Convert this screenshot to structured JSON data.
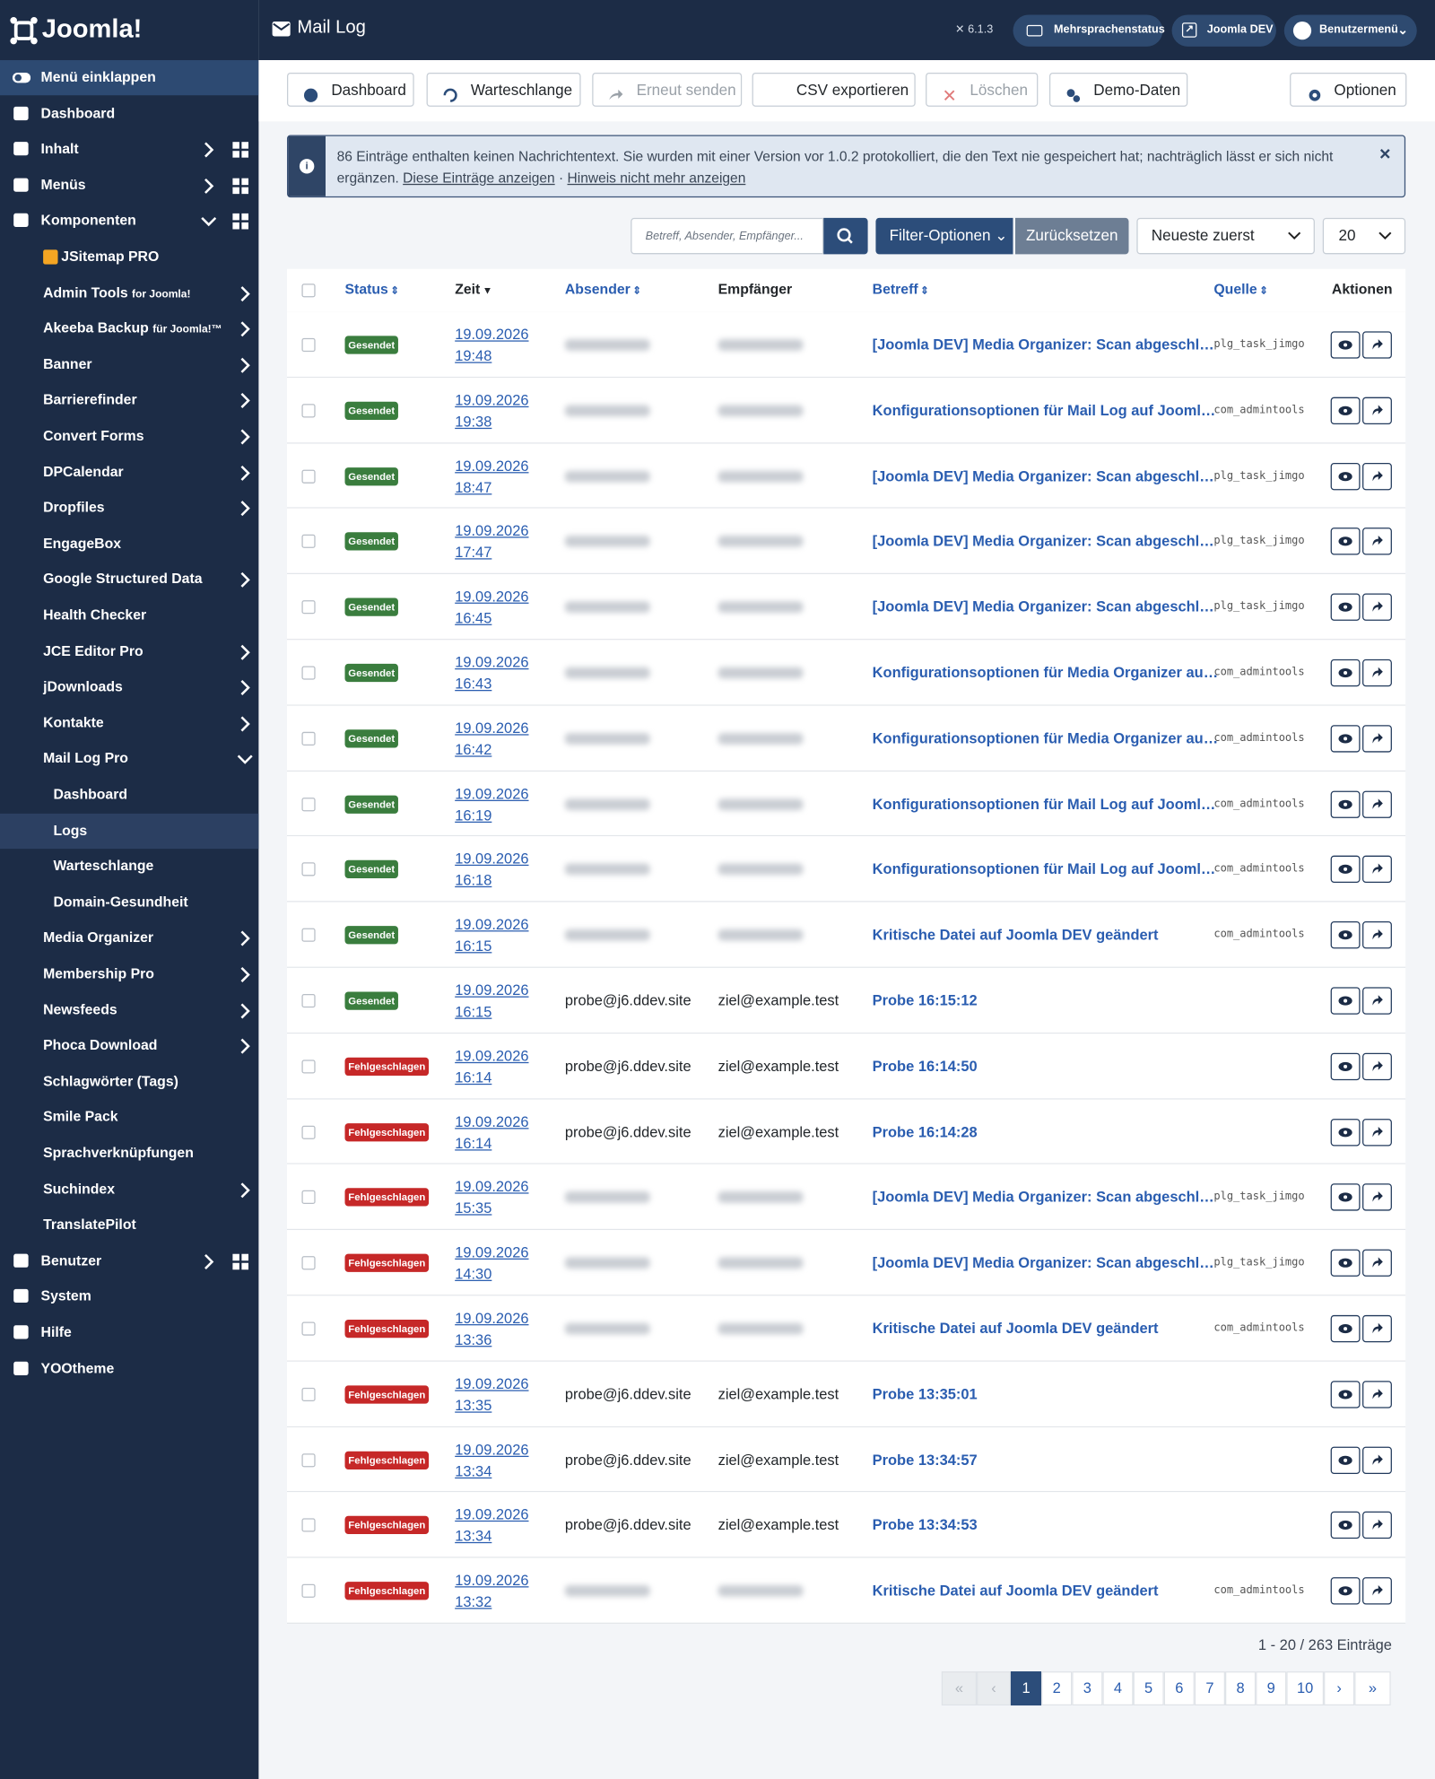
{
  "sidebar": {
    "logo": "Joomla!",
    "items": [
      {
        "label": "Menü einklappen"
      },
      {
        "label": "Dashboard"
      },
      {
        "label": "Inhalt"
      },
      {
        "label": "Menüs"
      },
      {
        "label": "Komponenten"
      },
      {
        "label": "JSitemap PRO"
      },
      {
        "label": "Admin Tools",
        "suffix": "for Joomla!"
      },
      {
        "label": "Akeeba Backup",
        "suffix": "für Joomla!™"
      },
      {
        "label": "Banner"
      },
      {
        "label": "Barrierefinder"
      },
      {
        "label": "Convert Forms"
      },
      {
        "label": "DPCalendar"
      },
      {
        "label": "Dropfiles"
      },
      {
        "label": "EngageBox"
      },
      {
        "label": "Google Structured Data"
      },
      {
        "label": "Health Checker"
      },
      {
        "label": "JCE Editor Pro"
      },
      {
        "label": "jDownloads"
      },
      {
        "label": "Kontakte"
      },
      {
        "label": "Mail Log Pro"
      },
      {
        "label": "Dashboard"
      },
      {
        "label": "Logs"
      },
      {
        "label": "Warteschlange"
      },
      {
        "label": "Domain-Gesundheit"
      },
      {
        "label": "Media Organizer"
      },
      {
        "label": "Membership Pro"
      },
      {
        "label": "Newsfeeds"
      },
      {
        "label": "Phoca Download"
      },
      {
        "label": "Schlagwörter (Tags)"
      },
      {
        "label": "Smile Pack"
      },
      {
        "label": "Sprachverknüpfungen"
      },
      {
        "label": "Suchindex"
      },
      {
        "label": "TranslatePilot"
      },
      {
        "label": "Benutzer"
      },
      {
        "label": "System"
      },
      {
        "label": "Hilfe"
      },
      {
        "label": "YOOtheme"
      }
    ]
  },
  "header": {
    "title": "Mail Log",
    "version": "6.1.3",
    "buttons": [
      "Mehrsprachenstatus",
      "Joomla DEV",
      "Benutzermenü"
    ]
  },
  "toolbar": {
    "buttons": [
      "Dashboard",
      "Warteschlange",
      "Erneut senden",
      "CSV exportieren",
      "Löschen",
      "Demo-Daten"
    ],
    "options": "Optionen"
  },
  "alert": {
    "text": "86 Einträge enthalten keinen Nachrichtentext. Sie wurden mit einer Version vor 1.0.2 protokolliert, die den Text nie gespeichert hat; nachträglich lässt er sich nicht ergänzen.",
    "link1": "Diese Einträge anzeigen",
    "separator": "·",
    "link2": "Hinweis nicht mehr anzeigen"
  },
  "filters": {
    "search_placeholder": "Betreff, Absender, Empfänger...",
    "filter_options": "Filter-Optionen",
    "reset": "Zurücksetzen",
    "sort": "Neueste zuerst",
    "limit": 20
  },
  "table": {
    "columns": [
      "Status",
      "Zeit",
      "Absender",
      "Empfänger",
      "Betreff",
      "Quelle",
      "Aktionen"
    ],
    "rows": [
      {
        "status": "Gesendet",
        "status_color": "#3a7d3e",
        "date": "19.09.2026",
        "time": "19:48",
        "sender": null,
        "recipient": null,
        "subject": "[Joomla DEV] Media Organizer: Scan abgeschl…",
        "source": "plg_task_jimgo"
      },
      {
        "status": "Gesendet",
        "status_color": "#3a7d3e",
        "date": "19.09.2026",
        "time": "19:38",
        "sender": null,
        "recipient": null,
        "subject": "Konfigurationsoptionen für Mail Log auf Jooml…",
        "source": "com_admintools"
      },
      {
        "status": "Gesendet",
        "status_color": "#3a7d3e",
        "date": "19.09.2026",
        "time": "18:47",
        "sender": null,
        "recipient": null,
        "subject": "[Joomla DEV] Media Organizer: Scan abgeschl…",
        "source": "plg_task_jimgo"
      },
      {
        "status": "Gesendet",
        "status_color": "#3a7d3e",
        "date": "19.09.2026",
        "time": "17:47",
        "sender": null,
        "recipient": null,
        "subject": "[Joomla DEV] Media Organizer: Scan abgeschl…",
        "source": "plg_task_jimgo"
      },
      {
        "status": "Gesendet",
        "status_color": "#3a7d3e",
        "date": "19.09.2026",
        "time": "16:45",
        "sender": null,
        "recipient": null,
        "subject": "[Joomla DEV] Media Organizer: Scan abgeschl…",
        "source": "plg_task_jimgo"
      },
      {
        "status": "Gesendet",
        "status_color": "#3a7d3e",
        "date": "19.09.2026",
        "time": "16:43",
        "sender": null,
        "recipient": null,
        "subject": "Konfigurationsoptionen für Media Organizer au…",
        "source": "com_admintools"
      },
      {
        "status": "Gesendet",
        "status_color": "#3a7d3e",
        "date": "19.09.2026",
        "time": "16:42",
        "sender": null,
        "recipient": null,
        "subject": "Konfigurationsoptionen für Media Organizer au…",
        "source": "com_admintools"
      },
      {
        "status": "Gesendet",
        "status_color": "#3a7d3e",
        "date": "19.09.2026",
        "time": "16:19",
        "sender": null,
        "recipient": null,
        "subject": "Konfigurationsoptionen für Mail Log auf Jooml…",
        "source": "com_admintools"
      },
      {
        "status": "Gesendet",
        "status_color": "#3a7d3e",
        "date": "19.09.2026",
        "time": "16:18",
        "sender": null,
        "recipient": null,
        "subject": "Konfigurationsoptionen für Mail Log auf Jooml…",
        "source": "com_admintools"
      },
      {
        "status": "Gesendet",
        "status_color": "#3a7d3e",
        "date": "19.09.2026",
        "time": "16:15",
        "sender": null,
        "recipient": null,
        "subject": "Kritische Datei auf Joomla DEV geändert",
        "source": "com_admintools"
      },
      {
        "status": "Gesendet",
        "status_color": "#3a7d3e",
        "date": "19.09.2026",
        "time": "16:15",
        "sender": "probe@j6.ddev.site",
        "recipient": "ziel@example.test",
        "subject": "Probe 16:15:12",
        "source": null
      },
      {
        "status": "Fehlgeschlagen",
        "status_color": "#c62828",
        "date": "19.09.2026",
        "time": "16:14",
        "sender": "probe@j6.ddev.site",
        "recipient": "ziel@example.test",
        "subject": "Probe 16:14:50",
        "source": null
      },
      {
        "status": "Fehlgeschlagen",
        "status_color": "#c62828",
        "date": "19.09.2026",
        "time": "16:14",
        "sender": "probe@j6.ddev.site",
        "recipient": "ziel@example.test",
        "subject": "Probe 16:14:28",
        "source": null
      },
      {
        "status": "Fehlgeschlagen",
        "status_color": "#c62828",
        "date": "19.09.2026",
        "time": "15:35",
        "sender": null,
        "recipient": null,
        "subject": "[Joomla DEV] Media Organizer: Scan abgeschl…",
        "source": "plg_task_jimgo"
      },
      {
        "status": "Fehlgeschlagen",
        "status_color": "#c62828",
        "date": "19.09.2026",
        "time": "14:30",
        "sender": null,
        "recipient": null,
        "subject": "[Joomla DEV] Media Organizer: Scan abgeschl…",
        "source": "plg_task_jimgo"
      },
      {
        "status": "Fehlgeschlagen",
        "status_color": "#c62828",
        "date": "19.09.2026",
        "time": "13:36",
        "sender": null,
        "recipient": null,
        "subject": "Kritische Datei auf Joomla DEV geändert",
        "source": "com_admintools"
      },
      {
        "status": "Fehlgeschlagen",
        "status_color": "#c62828",
        "date": "19.09.2026",
        "time": "13:35",
        "sender": "probe@j6.ddev.site",
        "recipient": "ziel@example.test",
        "subject": "Probe 13:35:01",
        "source": null
      },
      {
        "status": "Fehlgeschlagen",
        "status_color": "#c62828",
        "date": "19.09.2026",
        "time": "13:34",
        "sender": "probe@j6.ddev.site",
        "recipient": "ziel@example.test",
        "subject": "Probe 13:34:57",
        "source": null
      },
      {
        "status": "Fehlgeschlagen",
        "status_color": "#c62828",
        "date": "19.09.2026",
        "time": "13:34",
        "sender": "probe@j6.ddev.site",
        "recipient": "ziel@example.test",
        "subject": "Probe 13:34:53",
        "source": null
      },
      {
        "status": "Fehlgeschlagen",
        "status_color": "#c62828",
        "date": "19.09.2026",
        "time": "13:32",
        "sender": null,
        "recipient": null,
        "subject": "Kritische Datei auf Joomla DEV geändert",
        "source": "com_admintools"
      }
    ]
  },
  "footer": {
    "count": "1 - 20 / 263 Einträge"
  },
  "pagination": {
    "pages": [
      1,
      2,
      3,
      4,
      5,
      6,
      7,
      8,
      9,
      10
    ],
    "active_page": 1
  }
}
